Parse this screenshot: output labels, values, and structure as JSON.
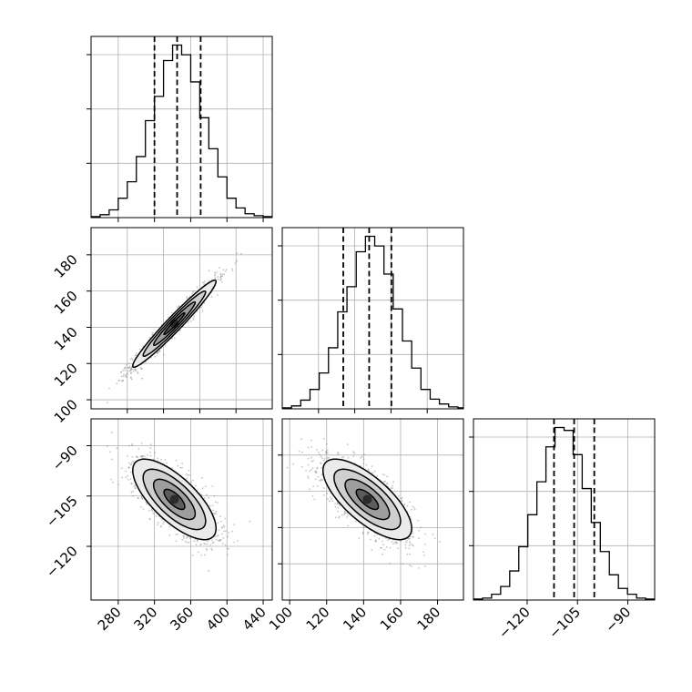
{
  "colors": {
    "ink": "#000000",
    "grid": "#b0b0b0",
    "scatter": "#7f7f7f",
    "fill_levels": [
      "#ebebeb",
      "#cfcfcf",
      "#9e9e9e",
      "#5c5c5c",
      "#2b2b2b"
    ]
  },
  "chart_data": [
    {
      "type": "histogram",
      "panel": "p1-marginal",
      "x_range": [
        250,
        450
      ],
      "bin_edges": [
        250,
        260,
        270,
        280,
        290,
        300,
        310,
        320,
        330,
        340,
        350,
        360,
        370,
        380,
        390,
        400,
        410,
        420,
        430,
        440,
        450
      ],
      "counts": [
        1,
        3,
        8,
        20,
        37,
        63,
        100,
        125,
        162,
        178,
        168,
        140,
        103,
        71,
        42,
        20,
        10,
        4,
        2,
        1
      ],
      "quantile_lines": [
        320,
        345,
        371
      ],
      "x_ticks": [
        280,
        320,
        360,
        400,
        440
      ],
      "grid": true
    },
    {
      "type": "scatter",
      "panel": "p1-vs-p2",
      "x_range": [
        250,
        450
      ],
      "y_range": [
        95,
        195
      ],
      "points_axis": "x",
      "center": [
        342,
        142
      ],
      "sigma": [
        23,
        12
      ],
      "correlation": 0.97,
      "contour_sigmas": [
        0.5,
        1,
        1.5,
        2
      ],
      "y_ticks": [
        100,
        120,
        140,
        160,
        180
      ],
      "grid": true
    },
    {
      "type": "histogram",
      "panel": "p2-marginal",
      "x_range": [
        96,
        194
      ],
      "bin_edges": [
        96,
        101,
        106,
        111,
        116,
        121,
        126,
        131,
        136,
        141,
        146,
        151,
        156,
        161,
        166,
        171,
        176,
        181,
        186,
        191,
        196
      ],
      "counts": [
        1,
        3,
        9,
        20,
        37,
        63,
        100,
        126,
        162,
        178,
        168,
        139,
        103,
        70,
        42,
        20,
        10,
        5,
        2,
        1
      ],
      "quantile_lines": [
        129,
        143,
        155
      ],
      "grid": true
    },
    {
      "type": "scatter",
      "panel": "p1-vs-p3",
      "x_range": [
        250,
        450
      ],
      "y_range": [
        -136,
        -82
      ],
      "center": [
        342,
        -106
      ],
      "sigma": [
        23,
        6
      ],
      "correlation": -0.72,
      "contour_sigmas": [
        0.5,
        1,
        1.5,
        2
      ],
      "x_ticks": [
        280,
        320,
        360,
        400,
        440
      ],
      "y_ticks": [
        -90,
        -105,
        -120
      ],
      "grid": true
    },
    {
      "type": "scatter",
      "panel": "p2-vs-p3",
      "x_range": [
        96,
        194
      ],
      "y_range": [
        -136,
        -82
      ],
      "center": [
        142,
        -106
      ],
      "sigma": [
        12,
        6
      ],
      "correlation": -0.72,
      "contour_sigmas": [
        0.5,
        1,
        1.5,
        2
      ],
      "x_ticks": [
        100,
        120,
        140,
        160,
        180
      ],
      "grid": true
    },
    {
      "type": "histogram",
      "panel": "p3-marginal",
      "x_range": [
        -136,
        -82
      ],
      "bin_edges": [
        -136,
        -133.3,
        -130.6,
        -127.9,
        -125.2,
        -122.5,
        -119.8,
        -117.1,
        -114.4,
        -111.7,
        -109,
        -106.3,
        -103.6,
        -100.9,
        -98.2,
        -95.5,
        -92.8,
        -90.1,
        -87.4,
        -84.7,
        -82
      ],
      "counts": [
        1,
        2,
        6,
        14,
        30,
        55,
        88,
        122,
        158,
        178,
        175,
        150,
        115,
        80,
        50,
        26,
        12,
        6,
        2,
        1
      ],
      "quantile_lines": [
        -112,
        -106,
        -100
      ],
      "x_ticks": [
        -120,
        -105,
        -90
      ],
      "grid": true
    }
  ]
}
